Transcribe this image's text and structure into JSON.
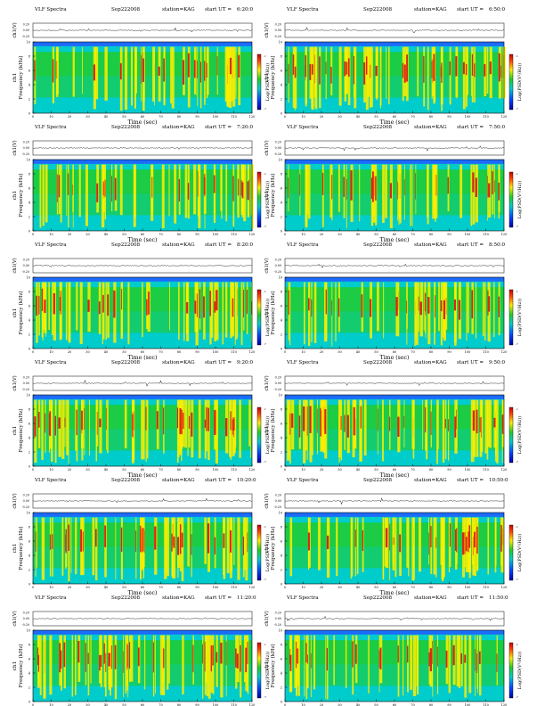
{
  "page": {
    "header_prefix": "VLF Spectra",
    "date": "Sep222008",
    "station": "station=KAG",
    "start_prefix": "start  UT  =",
    "ch1_label": "ch1(V)",
    "ch1_ticks": [
      "0.20",
      "0.00",
      "-0.20"
    ],
    "ylabel_prefix": "ch1",
    "ylabel": "Frequency  (kHz)",
    "xlabel": "Time  (sec)",
    "colorbar_label": "Log(PSD(V²/Hz))",
    "colorbar_ticks": [
      "-1",
      "-7"
    ],
    "colors": {
      "background": "#00cccc",
      "low": "#2060ff",
      "mid": "#22cc22",
      "high": "#ffee00",
      "peak": "#dd1111"
    }
  },
  "chart_data": [
    {
      "type": "heatmap",
      "panel": "VLF spectrogram",
      "start_ut": "6:20:0",
      "xlabel": "Time  (sec)",
      "ylabel": "Frequency  (kHz)",
      "xlim": [
        0,
        120
      ],
      "ylim": [
        0,
        10
      ],
      "x_ticks": [
        0,
        10,
        20,
        30,
        40,
        50,
        60,
        70,
        80,
        90,
        100,
        110,
        120
      ],
      "y_ticks": [
        0,
        2,
        4,
        6,
        8,
        10
      ],
      "colorbar": "Log(PSD(V²/Hz))"
    },
    {
      "type": "heatmap",
      "panel": "VLF spectrogram",
      "start_ut": "6:50:0",
      "xlabel": "Time  (sec)",
      "ylabel": "Frequency  (kHz)",
      "xlim": [
        0,
        120
      ],
      "ylim": [
        0,
        10
      ],
      "x_ticks": [
        0,
        10,
        20,
        30,
        40,
        50,
        60,
        70,
        80,
        90,
        100,
        110,
        120
      ],
      "y_ticks": [
        0,
        2,
        4,
        6,
        8,
        10
      ],
      "colorbar": "Log(PSD(V²/Hz))"
    },
    {
      "type": "heatmap",
      "panel": "VLF spectrogram",
      "start_ut": "7:20:0",
      "xlabel": "Time  (sec)",
      "ylabel": "Frequency  (kHz)",
      "xlim": [
        0,
        120
      ],
      "ylim": [
        0,
        10
      ],
      "x_ticks": [
        0,
        10,
        20,
        30,
        40,
        50,
        60,
        70,
        80,
        90,
        100,
        110,
        120
      ],
      "y_ticks": [
        0,
        2,
        4,
        6,
        8,
        10
      ],
      "colorbar": "Log(PSD(V²/Hz))"
    },
    {
      "type": "heatmap",
      "panel": "VLF spectrogram",
      "start_ut": "7:50:0",
      "xlabel": "Time  (sec)",
      "ylabel": "Frequency  (kHz)",
      "xlim": [
        0,
        120
      ],
      "ylim": [
        0,
        10
      ],
      "x_ticks": [
        0,
        10,
        20,
        30,
        40,
        50,
        60,
        70,
        80,
        90,
        100,
        110,
        120
      ],
      "y_ticks": [
        0,
        2,
        4,
        6,
        8,
        10
      ],
      "colorbar": "Log(PSD(V²/Hz))"
    },
    {
      "type": "heatmap",
      "panel": "VLF spectrogram",
      "start_ut": "8:20:0",
      "xlabel": "Time  (sec)",
      "ylabel": "Frequency  (kHz)",
      "xlim": [
        0,
        120
      ],
      "ylim": [
        0,
        10
      ],
      "x_ticks": [
        0,
        10,
        20,
        30,
        40,
        50,
        60,
        70,
        80,
        90,
        100,
        110,
        120
      ],
      "y_ticks": [
        0,
        2,
        4,
        6,
        8,
        10
      ],
      "colorbar": "Log(PSD(V²/Hz))"
    },
    {
      "type": "heatmap",
      "panel": "VLF spectrogram",
      "start_ut": "8:50:0",
      "xlabel": "Time  (sec)",
      "ylabel": "Frequency  (kHz)",
      "xlim": [
        0,
        120
      ],
      "ylim": [
        0,
        10
      ],
      "x_ticks": [
        0,
        10,
        20,
        30,
        40,
        50,
        60,
        70,
        80,
        90,
        100,
        110,
        120
      ],
      "y_ticks": [
        0,
        2,
        4,
        6,
        8,
        10
      ],
      "colorbar": "Log(PSD(V²/Hz))"
    },
    {
      "type": "heatmap",
      "panel": "VLF spectrogram",
      "start_ut": "9:20:0",
      "xlabel": "Time  (sec)",
      "ylabel": "Frequency  (kHz)",
      "xlim": [
        0,
        120
      ],
      "ylim": [
        0,
        10
      ],
      "x_ticks": [
        0,
        10,
        20,
        30,
        40,
        50,
        60,
        70,
        80,
        90,
        100,
        110,
        120
      ],
      "y_ticks": [
        0,
        2,
        4,
        6,
        8,
        10
      ],
      "colorbar": "Log(PSD(V²/Hz))"
    },
    {
      "type": "heatmap",
      "panel": "VLF spectrogram",
      "start_ut": "9:50:0",
      "xlabel": "Time  (sec)",
      "ylabel": "Frequency  (kHz)",
      "xlim": [
        0,
        120
      ],
      "ylim": [
        0,
        10
      ],
      "x_ticks": [
        0,
        10,
        20,
        30,
        40,
        50,
        60,
        70,
        80,
        90,
        100,
        110,
        120
      ],
      "y_ticks": [
        0,
        2,
        4,
        6,
        8,
        10
      ],
      "colorbar": "Log(PSD(V²/Hz))"
    },
    {
      "type": "heatmap",
      "panel": "VLF spectrogram",
      "start_ut": "10:20:0",
      "xlabel": "Time  (sec)",
      "ylabel": "Frequency  (kHz)",
      "xlim": [
        0,
        120
      ],
      "ylim": [
        0,
        10
      ],
      "x_ticks": [
        0,
        10,
        20,
        30,
        40,
        50,
        60,
        70,
        80,
        90,
        100,
        110,
        120
      ],
      "y_ticks": [
        0,
        2,
        4,
        6,
        8,
        10
      ],
      "colorbar": "Log(PSD(V²/Hz))"
    },
    {
      "type": "heatmap",
      "panel": "VLF spectrogram",
      "start_ut": "10:50:0",
      "xlabel": "Time  (sec)",
      "ylabel": "Frequency  (kHz)",
      "xlim": [
        0,
        120
      ],
      "ylim": [
        0,
        10
      ],
      "x_ticks": [
        0,
        10,
        20,
        30,
        40,
        50,
        60,
        70,
        80,
        90,
        100,
        110,
        120
      ],
      "y_ticks": [
        0,
        2,
        4,
        6,
        8,
        10
      ],
      "colorbar": "Log(PSD(V²/Hz))"
    },
    {
      "type": "heatmap",
      "panel": "VLF spectrogram",
      "start_ut": "11:20:0",
      "xlabel": "Time  (sec)",
      "ylabel": "Frequency  (kHz)",
      "xlim": [
        0,
        120
      ],
      "ylim": [
        0,
        10
      ],
      "x_ticks": [
        0,
        10,
        20,
        30,
        40,
        50,
        60,
        70,
        80,
        90,
        100,
        110,
        120
      ],
      "y_ticks": [
        0,
        2,
        4,
        6,
        8,
        10
      ],
      "colorbar": "Log(PSD(V²/Hz))"
    },
    {
      "type": "heatmap",
      "panel": "VLF spectrogram",
      "start_ut": "11:50:0",
      "xlabel": "Time  (sec)",
      "ylabel": "Frequency  (kHz)",
      "xlim": [
        0,
        120
      ],
      "ylim": [
        0,
        10
      ],
      "x_ticks": [
        0,
        10,
        20,
        30,
        40,
        50,
        60,
        70,
        80,
        90,
        100,
        110,
        120
      ],
      "y_ticks": [
        0,
        2,
        4,
        6,
        8,
        10
      ],
      "colorbar": "Log(PSD(V²/Hz))"
    }
  ]
}
